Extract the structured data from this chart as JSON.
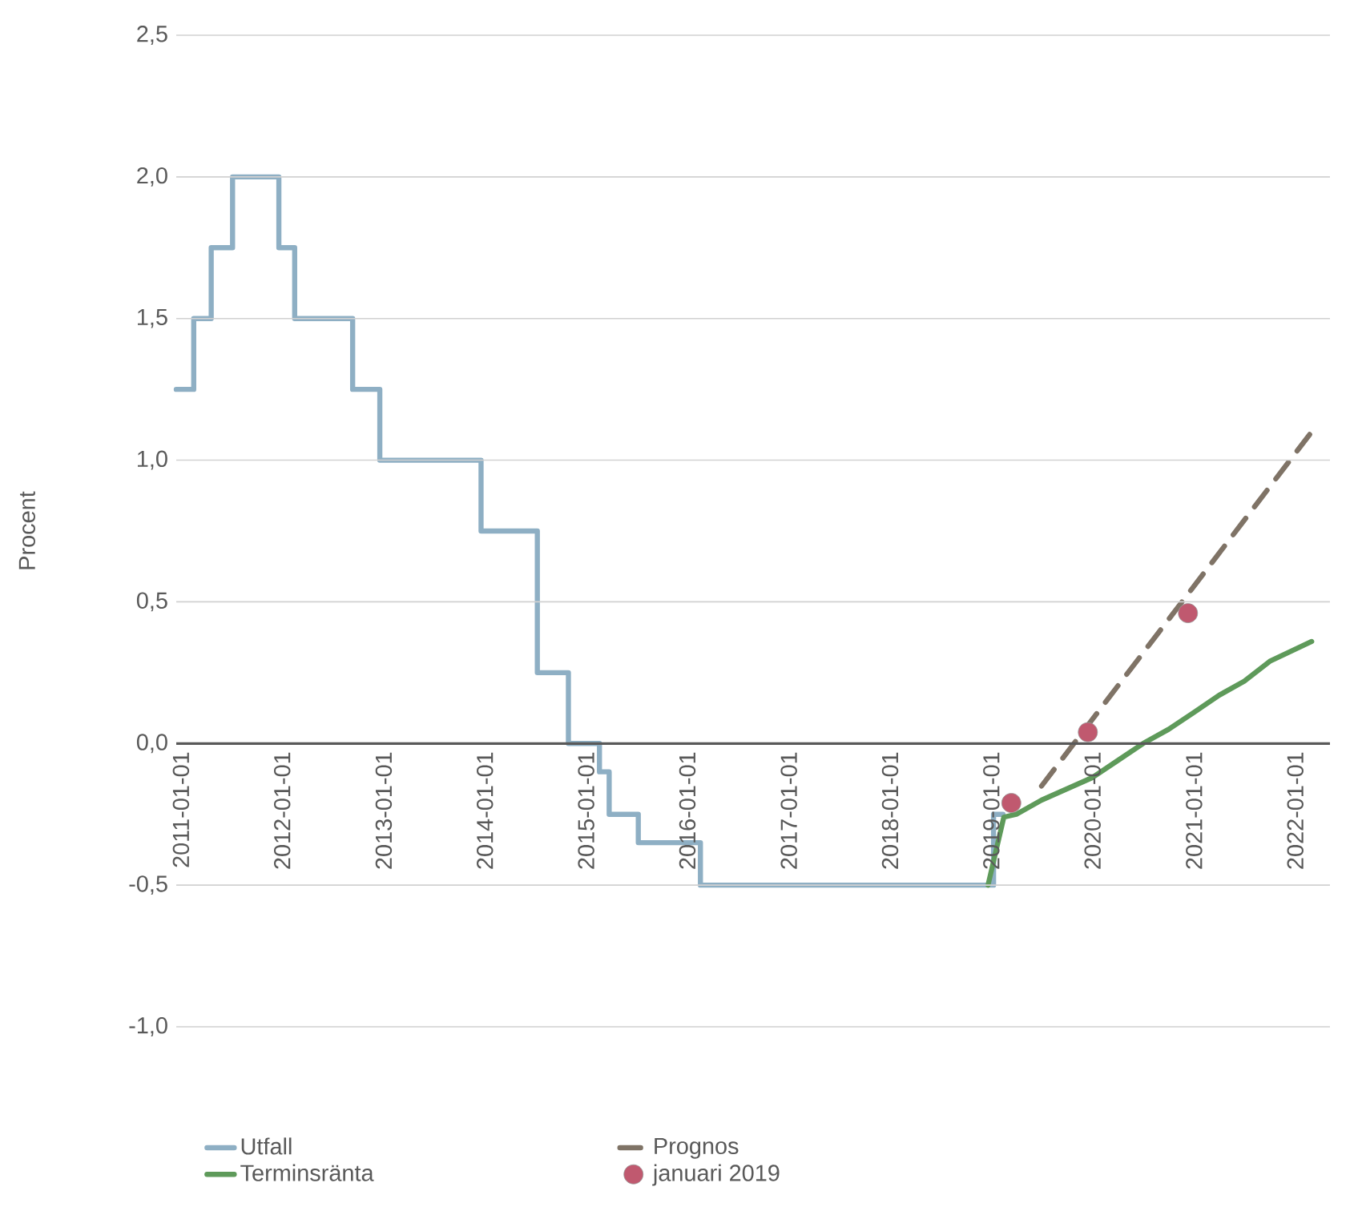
{
  "chart_data": {
    "type": "line",
    "ylabel": "Procent",
    "xlim": [
      "2010-12-15",
      "2022-05-06"
    ],
    "xticks": [
      "2011-01-01",
      "2012-01-01",
      "2013-01-01",
      "2014-01-01",
      "2015-01-01",
      "2016-01-01",
      "2017-01-01",
      "2018-01-01",
      "2019-01-01",
      "2020-01-01",
      "2021-01-01",
      "2022-01-01"
    ],
    "ylim": [
      -1.0,
      2.5
    ],
    "yticks": [
      {
        "value": -1.0,
        "label": "-1,0"
      },
      {
        "value": -0.5,
        "label": "-0,5"
      },
      {
        "value": 0.0,
        "label": "0,0"
      },
      {
        "value": 0.5,
        "label": "0,5"
      },
      {
        "value": 1.0,
        "label": "1,0"
      },
      {
        "value": 1.5,
        "label": "1,5"
      },
      {
        "value": 2.0,
        "label": "2,0"
      },
      {
        "value": 2.5,
        "label": "2,5"
      }
    ],
    "grid": "y",
    "legend": "bottom",
    "marker": "none",
    "line_style": "solid",
    "series": [
      {
        "name": "Utfall",
        "type": "step",
        "color": "#8eafc4",
        "x": [
          "2010-12-15",
          "2011-02-16",
          "2011-04-20",
          "2011-07-06",
          "2011-12-20",
          "2012-02-15",
          "2012-09-11",
          "2012-12-18",
          "2013-12-18",
          "2014-07-09",
          "2014-10-29",
          "2015-02-18",
          "2015-03-25",
          "2015-07-08",
          "2016-02-17",
          "2019-01-09",
          "2019-02-12"
        ],
        "values": [
          1.25,
          1.5,
          1.75,
          2.0,
          1.75,
          1.5,
          1.25,
          1.0,
          0.75,
          0.25,
          0.0,
          -0.1,
          -0.25,
          -0.35,
          -0.5,
          -0.25,
          -0.25
        ]
      },
      {
        "name": "Prognos",
        "line_style": "dashed",
        "color": "#7f7366",
        "x": [
          "2019-07-01",
          "2022-03-01"
        ],
        "values": [
          -0.15,
          1.1
        ]
      },
      {
        "name": "Terminsränta",
        "color": "#5e9a5a",
        "x": [
          "2018-12-20",
          "2019-02-15",
          "2019-04-01",
          "2019-07-01",
          "2019-10-01",
          "2020-01-01",
          "2020-04-01",
          "2020-07-01",
          "2020-10-01",
          "2021-01-01",
          "2021-04-01",
          "2021-07-01",
          "2021-10-01",
          "2022-03-01"
        ],
        "values": [
          -0.5,
          -0.26,
          -0.25,
          -0.2,
          -0.16,
          -0.12,
          -0.06,
          0.0,
          0.05,
          0.11,
          0.17,
          0.22,
          0.29,
          0.36
        ]
      },
      {
        "name": "januari 2019",
        "type": "scatter",
        "marker": "circle",
        "color": "#c0596f",
        "x": [
          "2019-03-14",
          "2019-12-15",
          "2020-12-10"
        ],
        "values": [
          -0.21,
          0.04,
          0.46
        ]
      }
    ]
  }
}
